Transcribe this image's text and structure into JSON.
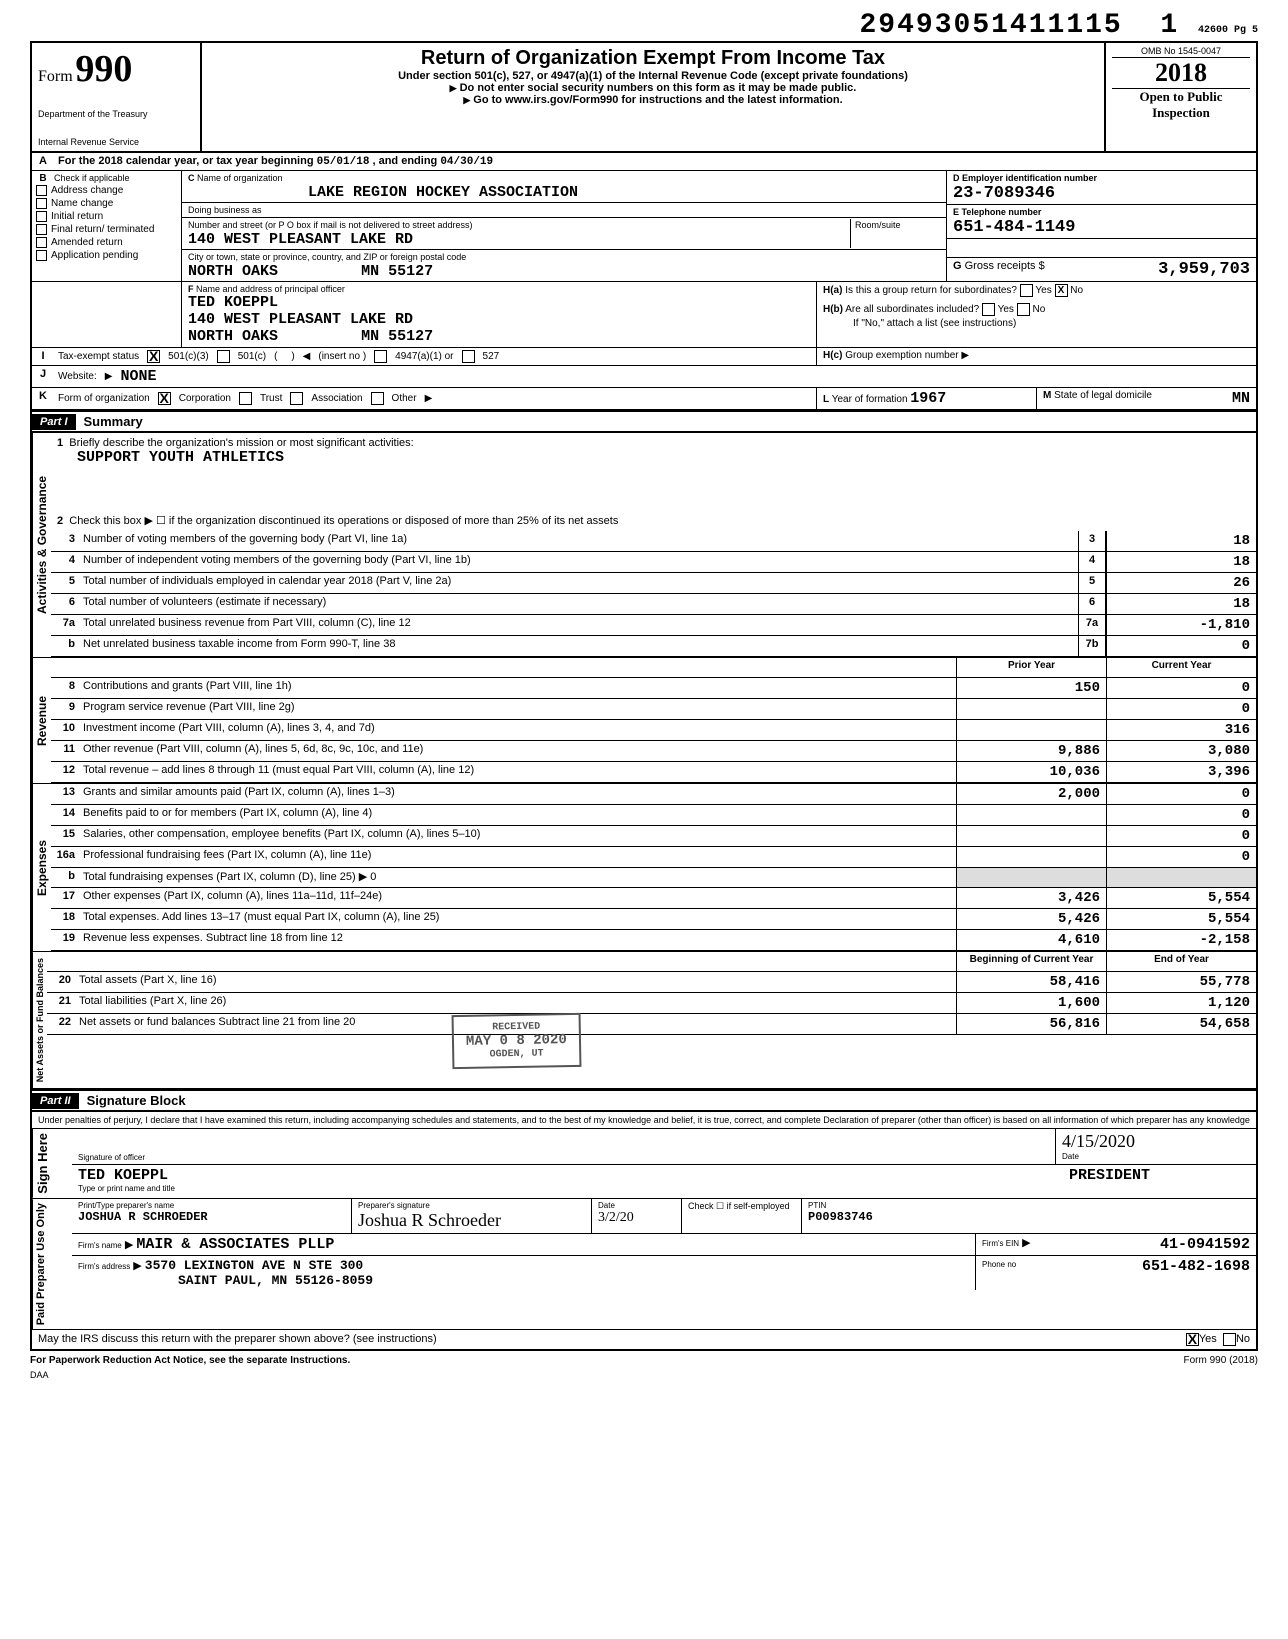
{
  "dln": "29493051411115",
  "dln_suffix": "1",
  "dln_page": "42600 Pg 5",
  "form": {
    "prefix": "Form",
    "number": "990"
  },
  "dept1": "Department of the Treasury",
  "dept2": "Internal Revenue Service",
  "title": "Return of Organization Exempt From Income Tax",
  "subtitle": "Under section 501(c), 527, or 4947(a)(1) of the Internal Revenue Code (except private foundations)",
  "warn": "Do not enter social security numbers on this form as it may be made public.",
  "link": "Go to www.irs.gov/Form990 for instructions and the latest information.",
  "omb": "OMB No 1545-0047",
  "tax_year": "2018",
  "open": "Open to Public Inspection",
  "period_label": "For the 2018 calendar year, or tax year beginning",
  "period_start": "05/01/18",
  "period_mid": ", and ending",
  "period_end": "04/30/19",
  "checks_b": [
    "Check if applicable",
    "Address change",
    "Name change",
    "Initial return",
    "Final return/ terminated",
    "Amended return",
    "Application pending"
  ],
  "c_label": "Name of organization",
  "org_name": "LAKE REGION HOCKEY ASSOCIATION",
  "dba_label": "Doing business as",
  "addr_label": "Number and street (or P O box if mail is not delivered to street address)",
  "addr": "140 WEST PLEASANT LAKE RD",
  "room_label": "Room/suite",
  "city_label": "City or town, state or province, country, and ZIP or foreign postal code",
  "city": "NORTH OAKS",
  "state_zip": "MN  55127",
  "d_label": "Employer identification number",
  "ein": "23-7089346",
  "e_label": "Telephone number",
  "phone": "651-484-1149",
  "g_label": "Gross receipts $",
  "gross": "3,959,703",
  "f_label": "Name and address of principal officer",
  "officer_name": "TED KOEPPL",
  "officer_addr": "140 WEST PLEASANT LAKE RD",
  "officer_city": "NORTH OAKS",
  "officer_sz": "MN  55127",
  "ha": "Is this a group return for subordinates?",
  "hb": "Are all subordinates included?",
  "hb_note": "If \"No,\" attach a list (see instructions)",
  "hc": "Group exemption number",
  "i_label": "Tax-exempt status",
  "i_opts": [
    "501(c)(3)",
    "501(c)",
    "(insert no )",
    "4947(a)(1) or",
    "527"
  ],
  "j_label": "Website:",
  "website": "NONE",
  "k_label": "Form of organization",
  "k_opts": [
    "Corporation",
    "Trust",
    "Association",
    "Other"
  ],
  "l_label": "Year of formation",
  "l_val": "1967",
  "m_label": "State of legal domicile",
  "m_val": "MN",
  "part1": "Part I",
  "part1_title": "Summary",
  "q1_label": "Briefly describe the organization's mission or most significant activities:",
  "q1_val": "SUPPORT YOUTH ATHLETICS",
  "q2": "Check this box ▶ ☐ if the organization discontinued its operations or disposed of more than 25% of its net assets",
  "lines_gov": [
    {
      "n": "3",
      "t": "Number of voting members of the governing body (Part VI, line 1a)",
      "box": "3",
      "v": "18"
    },
    {
      "n": "4",
      "t": "Number of independent voting members of the governing body (Part VI, line 1b)",
      "box": "4",
      "v": "18"
    },
    {
      "n": "5",
      "t": "Total number of individuals employed in calendar year 2018 (Part V, line 2a)",
      "box": "5",
      "v": "26"
    },
    {
      "n": "6",
      "t": "Total number of volunteers (estimate if necessary)",
      "box": "6",
      "v": "18"
    },
    {
      "n": "7a",
      "t": "Total unrelated business revenue from Part VIII, column (C), line 12",
      "box": "7a",
      "v": "-1,810"
    },
    {
      "n": "b",
      "t": "Net unrelated business taxable income from Form 990-T, line 38",
      "box": "7b",
      "v": "0"
    }
  ],
  "col_hdr_prior": "Prior Year",
  "col_hdr_curr": "Current Year",
  "lines_rev": [
    {
      "n": "8",
      "t": "Contributions and grants (Part VIII, line 1h)",
      "p": "150",
      "c": "0"
    },
    {
      "n": "9",
      "t": "Program service revenue (Part VIII, line 2g)",
      "p": "",
      "c": "0"
    },
    {
      "n": "10",
      "t": "Investment income (Part VIII, column (A), lines 3, 4, and 7d)",
      "p": "",
      "c": "316"
    },
    {
      "n": "11",
      "t": "Other revenue (Part VIII, column (A), lines 5, 6d, 8c, 9c, 10c, and 11e)",
      "p": "9,886",
      "c": "3,080"
    },
    {
      "n": "12",
      "t": "Total revenue – add lines 8 through 11 (must equal Part VIII, column (A), line 12)",
      "p": "10,036",
      "c": "3,396"
    }
  ],
  "lines_exp": [
    {
      "n": "13",
      "t": "Grants and similar amounts paid (Part IX, column (A), lines 1–3)",
      "p": "2,000",
      "c": "0"
    },
    {
      "n": "14",
      "t": "Benefits paid to or for members (Part IX, column (A), line 4)",
      "p": "",
      "c": "0"
    },
    {
      "n": "15",
      "t": "Salaries, other compensation, employee benefits (Part IX, column (A), lines 5–10)",
      "p": "",
      "c": "0"
    },
    {
      "n": "16a",
      "t": "Professional fundraising fees (Part IX, column (A), line 11e)",
      "p": "",
      "c": "0"
    },
    {
      "n": "b",
      "t": "Total fundraising expenses (Part IX, column (D), line 25) ▶            0",
      "p": "",
      "c": "",
      "shade": true
    },
    {
      "n": "17",
      "t": "Other expenses (Part IX, column (A), lines 11a–11d, 11f–24e)",
      "p": "3,426",
      "c": "5,554"
    },
    {
      "n": "18",
      "t": "Total expenses. Add lines 13–17 (must equal Part IX, column (A), line 25)",
      "p": "5,426",
      "c": "5,554"
    },
    {
      "n": "19",
      "t": "Revenue less expenses. Subtract line 18 from line 12",
      "p": "4,610",
      "c": "-2,158"
    }
  ],
  "col_hdr_beg": "Beginning of Current Year",
  "col_hdr_end": "End of Year",
  "lines_net": [
    {
      "n": "20",
      "t": "Total assets (Part X, line 16)",
      "p": "58,416",
      "c": "55,778"
    },
    {
      "n": "21",
      "t": "Total liabilities (Part X, line 26)",
      "p": "1,600",
      "c": "1,120"
    },
    {
      "n": "22",
      "t": "Net assets or fund balances  Subtract line 21 from line 20",
      "p": "56,816",
      "c": "54,658"
    }
  ],
  "side_gov": "Activities & Governance",
  "side_rev": "Revenue",
  "side_exp": "Expenses",
  "side_net": "Net Assets or Fund Balances",
  "part2": "Part II",
  "part2_title": "Signature Block",
  "decl": "Under penalties of perjury, I declare that I have examined this return, including accompanying schedules and statements, and to the best of my knowledge and belief, it is true, correct, and complete  Declaration of preparer (other than officer) is based on all information of which preparer has any knowledge",
  "sign_here": "Sign Here",
  "sig_officer_lbl": "Signature of officer",
  "sig_date_lbl": "Date",
  "sig_date": "4/15/2020",
  "officer_print": "TED KOEPPL",
  "officer_title": "PRESIDENT",
  "print_lbl": "Type or print name and title",
  "paid_prep": "Paid Preparer Use Only",
  "prep_name_lbl": "Print/Type preparer's name",
  "prep_name": "JOSHUA R SCHROEDER",
  "prep_sig_lbl": "Preparer's signature",
  "prep_sig": "Joshua R Schroeder",
  "prep_date_lbl": "Date",
  "prep_date": "3/2/20",
  "prep_check_lbl": "Check ☐ if self-employed",
  "ptin_lbl": "PTIN",
  "ptin": "P00983746",
  "firm_name_lbl": "Firm's name",
  "firm_name": "MAIR & ASSOCIATES PLLP",
  "firm_ein_lbl": "Firm's EIN",
  "firm_ein": "41-0941592",
  "firm_addr_lbl": "Firm's address",
  "firm_addr1": "3570 LEXINGTON AVE N STE 300",
  "firm_addr2": "SAINT PAUL, MN   55126-8059",
  "firm_phone_lbl": "Phone no",
  "firm_phone": "651-482-1698",
  "discuss": "May the IRS discuss this return with the preparer shown above? (see instructions)",
  "pra": "For Paperwork Reduction Act Notice, see the separate Instructions.",
  "daa": "DAA",
  "form_foot": "Form 990 (2018)",
  "stamp1": "RECEIVED",
  "stamp2": "MAY 0 8 2020",
  "stamp3": "OGDEN, UT",
  "yes": "Yes",
  "no": "No",
  "x": "X",
  "ha_prefix": "H(a)",
  "hb_prefix": "H(b)",
  "hc_prefix": "H(c)",
  "b_letter": "B",
  "a_letter": "A",
  "c_letter": "C",
  "d_letter": "D",
  "e_letter": "E",
  "f_letter": "F",
  "g_letter": "G",
  "i_letter": "I",
  "j_letter": "J",
  "k_letter": "K",
  "l_letter": "L",
  "m_letter": "M",
  "arrow_glyph": "▶",
  "left_arrow": "◀"
}
